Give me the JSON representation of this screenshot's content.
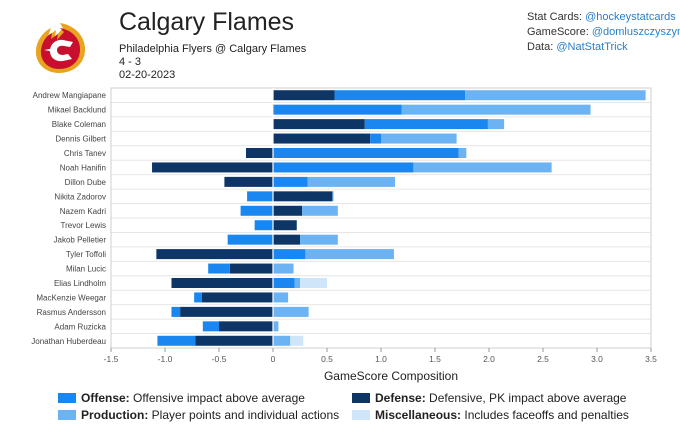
{
  "header": {
    "team": "Calgary Flames",
    "matchup": "Philadelphia Flyers @ Calgary Flames",
    "score": "4 - 3",
    "date": "02-20-2023"
  },
  "credits": [
    {
      "label": "Stat Cards:",
      "handle": "@hockeystatcards"
    },
    {
      "label": "GameScore:",
      "handle": "@domluszczyszyn"
    },
    {
      "label": "Data:",
      "handle": "@NatStatTrick"
    }
  ],
  "colors": {
    "offense": "#1a86f0",
    "defense": "#0d3566",
    "production": "#6bb3f2",
    "miscellaneous": "#cfe6fa"
  },
  "legend": [
    {
      "key": "offense",
      "name": "Offense:",
      "desc": "Offensive impact above average"
    },
    {
      "key": "defense",
      "name": "Defense:",
      "desc": "Defensive, PK impact above average"
    },
    {
      "key": "production",
      "name": "Production:",
      "desc": "Player points and individual actions"
    },
    {
      "key": "miscellaneous",
      "name": "Miscellaneous:",
      "desc": "Includes faceoffs and penalties"
    }
  ],
  "chart_data": {
    "type": "bar",
    "orientation": "horizontal-stacked",
    "title": "",
    "xlabel": "GameScore Composition",
    "ylabel": "",
    "xlim": [
      -1.5,
      3.5
    ],
    "xticks": [
      -1.5,
      -1.0,
      -0.5,
      0,
      0.5,
      1.0,
      1.5,
      2.0,
      2.5,
      3.0,
      3.5
    ],
    "grid": true,
    "series_order": [
      "defense",
      "offense",
      "production",
      "miscellaneous"
    ],
    "categories": [
      "Andrew Mangiapane",
      "Mikael Backlund",
      "Blake Coleman",
      "Dennis Gilbert",
      "Chris Tanev",
      "Noah Hanifin",
      "Dillon Dube",
      "Nikita Zadorov",
      "Nazem Kadri",
      "Trevor Lewis",
      "Jakob Pelletier",
      "Tyler Toffoli",
      "Milan Lucic",
      "Elias Lindholm",
      "MacKenzie Weegar",
      "Rasmus Andersson",
      "Adam Ruzicka",
      "Jonathan Huberdeau"
    ],
    "series": [
      {
        "name": "Defense",
        "key": "defense",
        "values": [
          0.57,
          0.01,
          0.85,
          0.9,
          -0.25,
          -1.12,
          -0.45,
          0.55,
          0.27,
          0.22,
          0.25,
          -1.08,
          -0.4,
          -0.94,
          -0.66,
          -0.86,
          -0.5,
          -0.72
        ]
      },
      {
        "name": "Offense",
        "key": "offense",
        "values": [
          1.21,
          1.18,
          1.14,
          0.1,
          1.72,
          1.3,
          0.32,
          -0.24,
          -0.3,
          -0.17,
          -0.42,
          0.3,
          -0.2,
          0.2,
          -0.07,
          -0.08,
          -0.15,
          -0.35
        ]
      },
      {
        "name": "Production",
        "key": "production",
        "values": [
          1.67,
          1.75,
          0.15,
          0.7,
          0.07,
          1.28,
          0.81,
          0.01,
          0.33,
          0.0,
          0.35,
          0.82,
          0.19,
          0.05,
          0.14,
          0.33,
          0.05,
          0.16
        ]
      },
      {
        "name": "Miscellaneous",
        "key": "miscellaneous",
        "values": [
          0.0,
          0.0,
          0.0,
          0.0,
          0.0,
          0.0,
          0.0,
          0.0,
          0.0,
          0.0,
          0.0,
          0.0,
          0.0,
          0.25,
          0.0,
          0.0,
          0.0,
          0.12
        ]
      }
    ]
  }
}
